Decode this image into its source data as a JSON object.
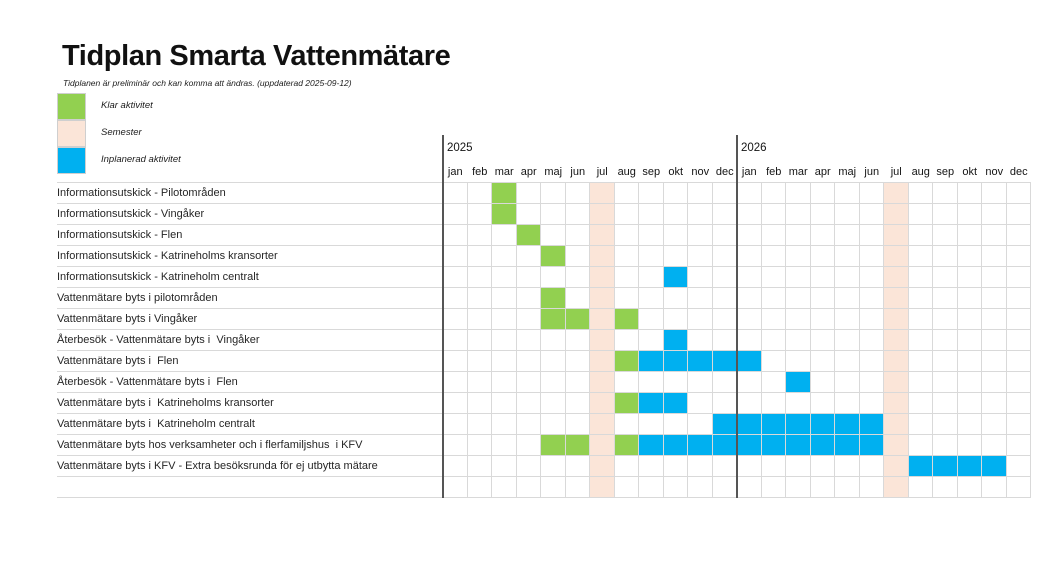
{
  "title": "Tidplan Smarta Vattenmätare",
  "subtitle": "Tidplanen är preliminär och kan komma att ändras. (uppdaterad 2025-09-12)",
  "legend": [
    {
      "key": "done",
      "label": "Klar aktivitet"
    },
    {
      "key": "vacation",
      "label": "Semester"
    },
    {
      "key": "planned",
      "label": "Inplanerad aktivitet"
    }
  ],
  "colors": {
    "done": "#92d050",
    "vacation": "#fbe5d8",
    "planned": "#00b0f0",
    "grid_line": "#d9d9d9",
    "year_divider": "#555555",
    "text": "#262626"
  },
  "chart_data": {
    "type": "heatmap",
    "subtype": "gantt-month-grid",
    "title": "Tidplan Smarta Vattenmätare",
    "legend_position": "top-left",
    "xlabel": "",
    "ylabel": "",
    "years": [
      {
        "label": "2025",
        "months": [
          "jan",
          "feb",
          "mar",
          "apr",
          "maj",
          "jun",
          "jul",
          "aug",
          "sep",
          "okt",
          "nov",
          "dec"
        ]
      },
      {
        "label": "2026",
        "months": [
          "jan",
          "feb",
          "mar",
          "apr",
          "maj",
          "jun",
          "jul",
          "aug",
          "sep",
          "okt",
          "nov",
          "dec"
        ]
      }
    ],
    "vacation_months": [
      "2025-jul",
      "2026-jul"
    ],
    "cell_states": {
      "done": "Klar aktivitet",
      "vacation": "Semester",
      "planned": "Inplanerad aktivitet"
    },
    "tasks": [
      {
        "label": "Informationsutskick - Pilotområden",
        "done": [
          "2025-mar"
        ],
        "planned": []
      },
      {
        "label": "Informationsutskick - Vingåker",
        "done": [
          "2025-mar"
        ],
        "planned": []
      },
      {
        "label": "Informationsutskick - Flen",
        "done": [
          "2025-apr"
        ],
        "planned": []
      },
      {
        "label": "Informationsutskick - Katrineholms kransorter",
        "done": [
          "2025-maj"
        ],
        "planned": []
      },
      {
        "label": "Informationsutskick - Katrineholm centralt",
        "done": [],
        "planned": [
          "2025-okt"
        ]
      },
      {
        "label": "Vattenmätare byts i pilotområden",
        "done": [
          "2025-maj"
        ],
        "planned": []
      },
      {
        "label": "Vattenmätare byts i Vingåker",
        "done": [
          "2025-maj",
          "2025-jun",
          "2025-aug"
        ],
        "planned": []
      },
      {
        "label": "Återbesök - Vattenmätare byts i  Vingåker",
        "done": [],
        "planned": [
          "2025-okt"
        ]
      },
      {
        "label": "Vattenmätare byts i  Flen",
        "done": [
          "2025-aug"
        ],
        "planned": [
          "2025-sep",
          "2025-okt",
          "2025-nov",
          "2025-dec",
          "2026-jan"
        ]
      },
      {
        "label": "Återbesök - Vattenmätare byts i  Flen",
        "done": [],
        "planned": [
          "2026-mar"
        ]
      },
      {
        "label": "Vattenmätare byts i  Katrineholms kransorter",
        "done": [
          "2025-aug"
        ],
        "planned": [
          "2025-sep",
          "2025-okt"
        ]
      },
      {
        "label": "Vattenmätare byts i  Katrineholm centralt",
        "done": [],
        "planned": [
          "2025-dec",
          "2026-jan",
          "2026-feb",
          "2026-mar",
          "2026-apr",
          "2026-maj",
          "2026-jun"
        ]
      },
      {
        "label": "Vattenmätare byts hos verksamheter och i flerfamiljshus  i KFV",
        "done": [
          "2025-maj",
          "2025-jun",
          "2025-aug"
        ],
        "planned": [
          "2025-sep",
          "2025-okt",
          "2025-nov",
          "2025-dec",
          "2026-jan",
          "2026-feb",
          "2026-mar",
          "2026-apr",
          "2026-maj",
          "2026-jun"
        ]
      },
      {
        "label": "Vattenmätare byts i KFV - Extra besöksrunda för ej utbytta mätare",
        "done": [],
        "planned": [
          "2026-aug",
          "2026-sep",
          "2026-okt",
          "2026-nov"
        ]
      }
    ],
    "trailing_empty_rows": 1
  }
}
